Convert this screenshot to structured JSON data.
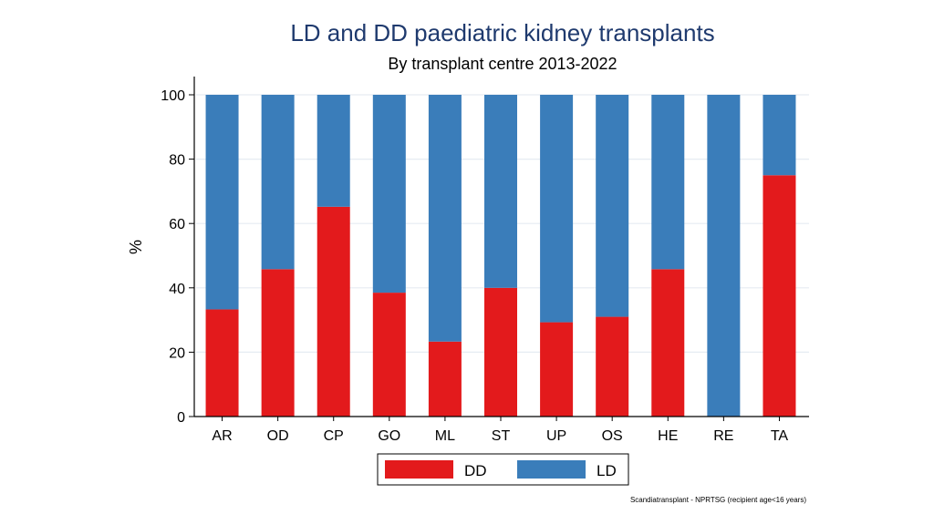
{
  "chart_data": {
    "type": "bar",
    "stacked": true,
    "title": "LD and DD paediatric kidney transplants",
    "subtitle": "By transplant centre 2013-2022",
    "xlabel": "",
    "ylabel": "%",
    "ylim": [
      0,
      100
    ],
    "yticks": [
      0,
      20,
      40,
      60,
      80,
      100
    ],
    "grid": true,
    "categories": [
      "AR",
      "OD",
      "CP",
      "GO",
      "ML",
      "ST",
      "UP",
      "OS",
      "HE",
      "RE",
      "TA"
    ],
    "series": [
      {
        "name": "DD",
        "color": "#e31a1c",
        "values": [
          33.3,
          45.8,
          65.2,
          38.5,
          23.3,
          40.0,
          29.3,
          31.0,
          45.8,
          0,
          75.0
        ]
      },
      {
        "name": "LD",
        "color": "#3a7dba",
        "values": [
          66.7,
          54.2,
          34.8,
          61.5,
          76.7,
          60.0,
          70.7,
          69.0,
          54.2,
          100,
          25.0
        ]
      }
    ],
    "legend_position": "bottom",
    "source_note": "Scandiatransplant - NPRTSG (recipient age<16 years)"
  },
  "colors": {
    "title": "#1f3a6e",
    "axis": "#000000",
    "grid": "#e6ecf2"
  }
}
